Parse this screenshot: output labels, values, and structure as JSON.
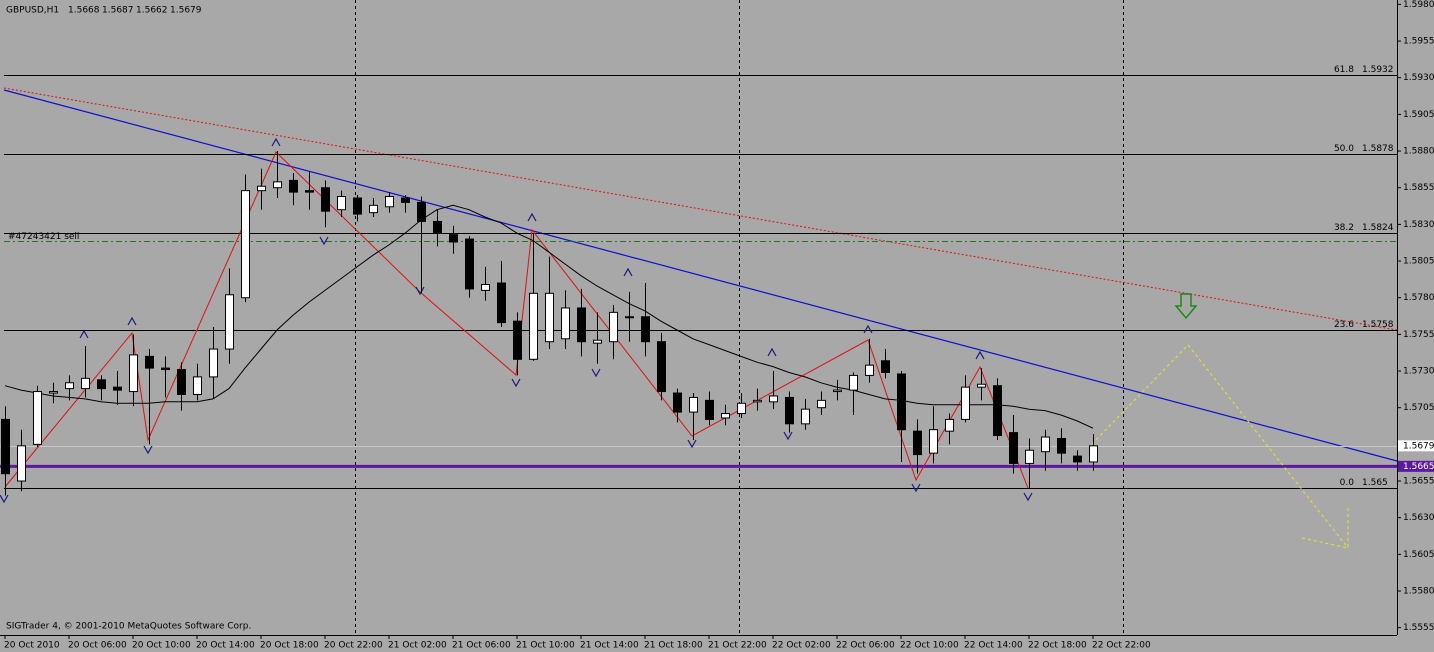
{
  "chart_data": {
    "type": "candlestick",
    "title": "GBPUSD,H1",
    "footer": "SIGTrader 4, © 2001-2010 MetaQuotes Software Corp.",
    "categories": [
      "20 Oct 2010",
      null,
      null,
      null,
      "20 Oct 06:00",
      null,
      null,
      null,
      "20 Oct 10:00",
      null,
      null,
      null,
      "20 Oct 14:00",
      null,
      null,
      null,
      "20 Oct 18:00",
      null,
      null,
      null,
      "20 Oct 22:00",
      null,
      null,
      null,
      "21 Oct 02:00",
      null,
      null,
      null,
      "21 Oct 06:00",
      null,
      null,
      null,
      "21 Oct 10:00",
      null,
      null,
      null,
      "21 Oct 14:00",
      null,
      null,
      null,
      "21 Oct 18:00",
      null,
      null,
      null,
      "21 Oct 22:00",
      null,
      null,
      null,
      "22 Oct 02:00",
      null,
      null,
      null,
      "22 Oct 06:00",
      null,
      null,
      null,
      "22 Oct 10:00",
      null,
      null,
      null,
      "22 Oct 14:00",
      null,
      null,
      null,
      "22 Oct 18:00",
      null,
      null,
      null,
      "22 Oct 22:00"
    ],
    "open": [
      1.5697,
      1.5655,
      1.568,
      1.5715,
      1.5718,
      1.5718,
      1.5724,
      1.5719,
      1.5716,
      1.574,
      1.5732,
      1.5731,
      1.5714,
      1.5726,
      1.5745,
      1.578,
      1.5853,
      1.5855,
      1.586,
      1.5853,
      1.5855,
      1.584,
      1.5848,
      1.5838,
      1.5842,
      1.5848,
      1.5845,
      1.5832,
      1.5823,
      1.582,
      1.5785,
      1.579,
      1.5764,
      1.5738,
      1.575,
      1.5752,
      1.5773,
      1.5749,
      1.575,
      1.5767,
      1.5767,
      1.575,
      1.5715,
      1.5702,
      1.571,
      1.5698,
      1.5701,
      1.5709,
      1.5709,
      1.5712,
      1.5694,
      1.5705,
      1.5716,
      1.5717,
      1.5727,
      1.5737,
      1.5728,
      1.5689,
      1.5674,
      1.5689,
      1.5697,
      1.5719,
      1.572,
      1.5688,
      1.5667,
      1.5675,
      1.5684,
      1.5672,
      1.5668
    ],
    "high": [
      1.5706,
      1.569,
      1.572,
      1.5722,
      1.5727,
      1.5747,
      1.5727,
      1.573,
      1.5755,
      1.5745,
      1.574,
      1.5736,
      1.5735,
      1.576,
      1.58,
      1.5864,
      1.5868,
      1.588,
      1.5865,
      1.5866,
      1.586,
      1.5853,
      1.585,
      1.5848,
      1.5852,
      1.585,
      1.5849,
      1.584,
      1.5829,
      1.5822,
      1.5801,
      1.5805,
      1.577,
      1.5824,
      1.5808,
      1.5785,
      1.5786,
      1.577,
      1.5775,
      1.5784,
      1.579,
      1.5756,
      1.5718,
      1.5715,
      1.5716,
      1.5707,
      1.5715,
      1.5718,
      1.573,
      1.5716,
      1.5711,
      1.5716,
      1.5724,
      1.5729,
      1.5752,
      1.5745,
      1.573,
      1.5697,
      1.5706,
      1.5701,
      1.5727,
      1.5732,
      1.5725,
      1.57,
      1.5684,
      1.569,
      1.5691,
      1.5676,
      1.5687
    ],
    "low": [
      1.5645,
      1.5648,
      1.5678,
      1.5708,
      1.571,
      1.5712,
      1.571,
      1.5707,
      1.5706,
      1.568,
      1.5712,
      1.5703,
      1.571,
      1.5711,
      1.5735,
      1.5777,
      1.584,
      1.5848,
      1.5843,
      1.584,
      1.5828,
      1.5835,
      1.5832,
      1.5835,
      1.5838,
      1.5838,
      1.5783,
      1.5815,
      1.581,
      1.578,
      1.5778,
      1.576,
      1.5727,
      1.5737,
      1.5745,
      1.5745,
      1.574,
      1.5735,
      1.5738,
      1.575,
      1.574,
      1.571,
      1.5695,
      1.5683,
      1.5693,
      1.5693,
      1.5698,
      1.5703,
      1.5704,
      1.5688,
      1.569,
      1.57,
      1.571,
      1.57,
      1.5722,
      1.5725,
      1.5668,
      1.566,
      1.5667,
      1.568,
      1.5695,
      1.571,
      1.5683,
      1.566,
      1.565,
      1.5662,
      1.5667,
      1.5662,
      1.5662
    ],
    "close": [
      1.566,
      1.5679,
      1.5716,
      1.5716,
      1.5722,
      1.5725,
      1.5718,
      1.5717,
      1.5741,
      1.5732,
      1.5731,
      1.5714,
      1.5726,
      1.5745,
      1.5782,
      1.5853,
      1.5856,
      1.5859,
      1.5852,
      1.5852,
      1.5839,
      1.5849,
      1.5837,
      1.5843,
      1.5849,
      1.5845,
      1.5832,
      1.5824,
      1.5818,
      1.5786,
      1.5789,
      1.5763,
      1.5738,
      1.5783,
      1.5783,
      1.5773,
      1.575,
      1.5751,
      1.577,
      1.5767,
      1.575,
      1.5716,
      1.5702,
      1.5712,
      1.5697,
      1.5701,
      1.5708,
      1.571,
      1.5713,
      1.5694,
      1.5704,
      1.571,
      1.5717,
      1.5727,
      1.5734,
      1.5729,
      1.569,
      1.5673,
      1.569,
      1.5697,
      1.5719,
      1.5721,
      1.5686,
      1.5667,
      1.5676,
      1.5685,
      1.5674,
      1.5668,
      1.5679
    ],
    "ma": [
      1.572,
      1.5717,
      1.5715,
      1.5713,
      1.5712,
      1.5711,
      1.5709,
      1.5708,
      1.5708,
      1.5708,
      1.5709,
      1.5709,
      1.5709,
      1.5711,
      1.5718,
      1.5732,
      1.5745,
      1.5758,
      1.5768,
      1.5777,
      1.5785,
      1.5793,
      1.5801,
      1.5809,
      1.5816,
      1.5824,
      1.5833,
      1.584,
      1.5843,
      1.584,
      1.5835,
      1.5831,
      1.5824,
      1.5819,
      1.5811,
      1.5803,
      1.5795,
      1.5788,
      1.5782,
      1.5776,
      1.5771,
      1.5764,
      1.5758,
      1.5752,
      1.5748,
      1.5744,
      1.574,
      1.5736,
      1.5733,
      1.5729,
      1.5726,
      1.5722,
      1.5719,
      1.5717,
      1.5714,
      1.5711,
      1.571,
      1.5708,
      1.5707,
      1.5707,
      1.5707,
      1.5707,
      1.5707,
      1.5706,
      1.5704,
      1.5703,
      1.57,
      1.5696,
      1.5691
    ],
    "ma_color": "#000000",
    "up_color": "#ffffff",
    "down_color": "#000000",
    "ylim": [
      1.555,
      1.5983
    ],
    "yticks": [
      {
        "value": 1.598,
        "label": "1.5980"
      },
      {
        "value": 1.5955,
        "label": "1.5955"
      },
      {
        "value": 1.593,
        "label": "1.5930"
      },
      {
        "value": 1.5905,
        "label": "1.5905"
      },
      {
        "value": 1.588,
        "label": "1.5880"
      },
      {
        "value": 1.5855,
        "label": "1.5855"
      },
      {
        "value": 1.583,
        "label": "1.5830"
      },
      {
        "value": 1.5805,
        "label": "1.5805"
      },
      {
        "value": 1.578,
        "label": "1.5780"
      },
      {
        "value": 1.5755,
        "label": "1.5755"
      },
      {
        "value": 1.573,
        "label": "1.5730"
      },
      {
        "value": 1.5705,
        "label": "1.5705"
      },
      {
        "value": 1.568,
        "label": "1.5680"
      },
      {
        "value": 1.5655,
        "label": "1.5655"
      },
      {
        "value": 1.563,
        "label": "1.5630"
      },
      {
        "value": 1.5605,
        "label": "1.5605"
      },
      {
        "value": 1.558,
        "label": "1.5580"
      },
      {
        "value": 1.5555,
        "label": "1.5555"
      }
    ],
    "fib_levels": [
      {
        "ratio": "61.8",
        "price": 1.5932
      },
      {
        "ratio": "50.0",
        "price": 1.5878
      },
      {
        "ratio": "38.2",
        "price": 1.5824
      },
      {
        "ratio": "23.6",
        "price": 1.5758
      },
      {
        "ratio": "0.0",
        "price": 1.565
      }
    ],
    "order_line": {
      "label": "#47243421 sell",
      "price": 1.5819,
      "color": "#1f7a1f"
    },
    "level_line": {
      "price": 1.5665,
      "color": "#5b1a9e"
    }
  }
}
